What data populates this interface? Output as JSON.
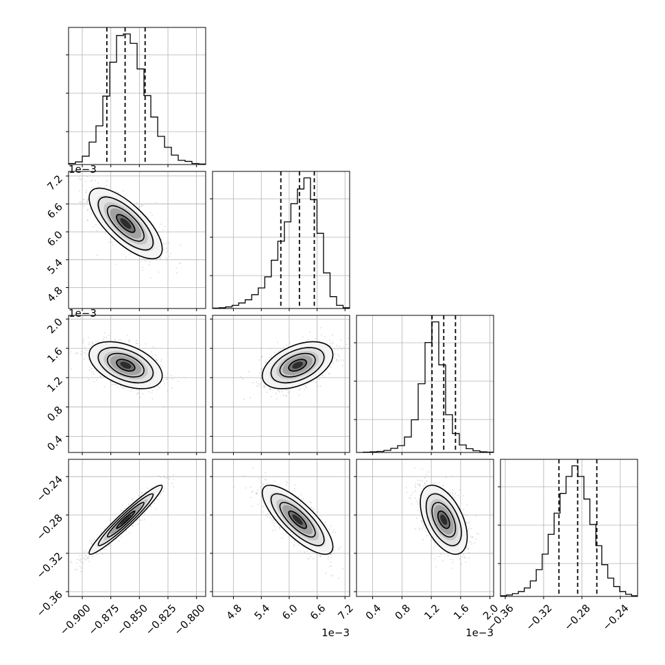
{
  "chart_data": {
    "type": "corner",
    "n_params": 4,
    "grid": true,
    "parameters": [
      {
        "range": [
          -0.912,
          -0.792
        ],
        "ticks": [
          -0.9,
          -0.875,
          -0.85,
          -0.825,
          -0.8
        ],
        "tick_labels": [
          "−0.900",
          "−0.875",
          "−0.850",
          "−0.825",
          "−0.800"
        ],
        "offset_text": "",
        "mean": -0.862,
        "sd": 0.016,
        "quantiles": [
          -0.8785,
          -0.8625,
          -0.845
        ],
        "hist_values": [
          2,
          5,
          16,
          43,
          74,
          131,
          196,
          247,
          250,
          232,
          183,
          132,
          91,
          54,
          33,
          18,
          8,
          6,
          2,
          1
        ]
      },
      {
        "range": [
          4.35,
          7.3
        ],
        "ticks": [
          4.8,
          5.4,
          6.0,
          6.6,
          7.2
        ],
        "tick_labels": [
          "4.8",
          "5.4",
          "6.0",
          "6.6",
          "7.2"
        ],
        "offset_text": "1e−3",
        "mean": 6.18,
        "sd": 0.38,
        "quantiles": [
          5.82,
          6.22,
          6.54
        ],
        "hist_values": [
          1,
          2,
          4,
          8,
          14,
          22,
          35,
          52,
          80,
          122,
          170,
          219,
          265,
          302,
          330,
          275,
          190,
          90,
          30,
          8,
          2
        ]
      },
      {
        "range": [
          0.18,
          2.05
        ],
        "ticks": [
          0.4,
          0.8,
          1.2,
          1.6,
          2.0
        ],
        "tick_labels": [
          "0.4",
          "0.8",
          "1.2",
          "1.6",
          "2.0"
        ],
        "offset_text": "1e−3",
        "mean": 1.37,
        "sd": 0.16,
        "quantiles": [
          1.21,
          1.37,
          1.53
        ],
        "hist_values": [
          0,
          1,
          2,
          3,
          6,
          12,
          20,
          45,
          95,
          200,
          320,
          380,
          255,
          110,
          55,
          22,
          11,
          5,
          2,
          1
        ]
      },
      {
        "range": [
          -0.365,
          -0.222
        ],
        "ticks": [
          -0.36,
          -0.32,
          -0.28,
          -0.24
        ],
        "tick_labels": [
          "−0.36",
          "−0.32",
          "−0.28",
          "−0.24"
        ],
        "offset_text": "",
        "mean": -0.285,
        "sd": 0.018,
        "quantiles": [
          -0.304,
          -0.2845,
          -0.2645
        ],
        "hist_values": [
          1,
          2,
          4,
          7,
          12,
          22,
          38,
          60,
          88,
          118,
          146,
          170,
          185,
          170,
          138,
          102,
          72,
          45,
          26,
          14,
          7,
          3,
          1
        ]
      }
    ],
    "correlations": [
      [
        1.0,
        -0.72,
        -0.45,
        0.96
      ],
      [
        -0.72,
        1.0,
        0.45,
        -0.78
      ],
      [
        -0.45,
        0.45,
        1.0,
        -0.5
      ],
      [
        0.96,
        -0.78,
        -0.5,
        1.0
      ]
    ],
    "contour_levels_sigma": [
      0.5,
      1.0,
      1.5,
      2.0
    ],
    "colors": {
      "line": "#000000",
      "grid": "#b0b0b0",
      "points": "#b8b8b8"
    }
  }
}
